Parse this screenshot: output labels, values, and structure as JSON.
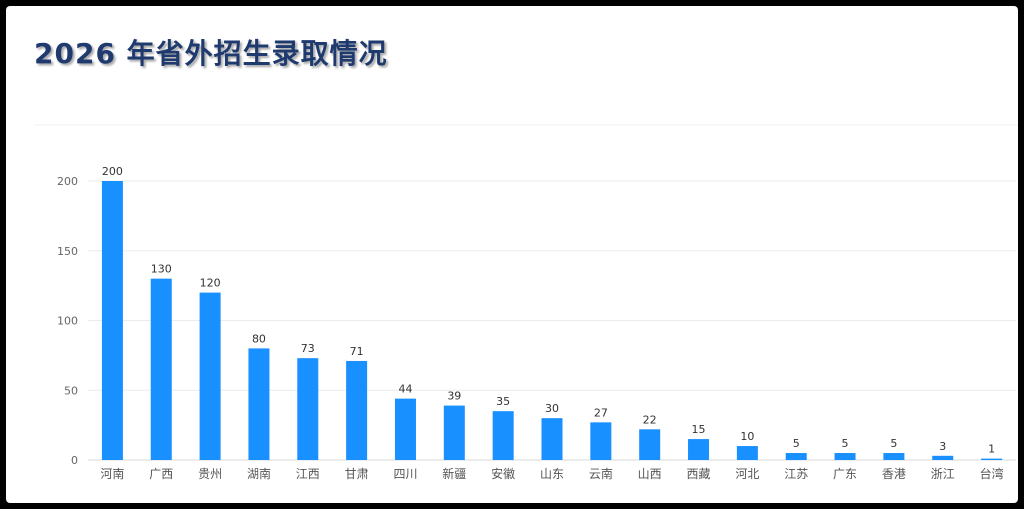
{
  "title": "2026 年省外招生录取情况",
  "chart_data": {
    "type": "bar",
    "title": "",
    "xlabel": "",
    "ylabel": "",
    "ylim": [
      0,
      200
    ],
    "yticks": [
      0,
      50,
      100,
      150,
      200
    ],
    "grid": true,
    "bar_color": "#1890ff",
    "categories": [
      "河南",
      "广西",
      "贵州",
      "湖南",
      "江西",
      "甘肃",
      "四川",
      "新疆",
      "安徽",
      "山东",
      "云南",
      "山西",
      "西藏",
      "河北",
      "江苏",
      "广东",
      "香港",
      "浙江",
      "台湾"
    ],
    "values": [
      200,
      130,
      120,
      80,
      73,
      71,
      44,
      39,
      35,
      30,
      27,
      22,
      15,
      10,
      5,
      5,
      5,
      3,
      1
    ]
  }
}
